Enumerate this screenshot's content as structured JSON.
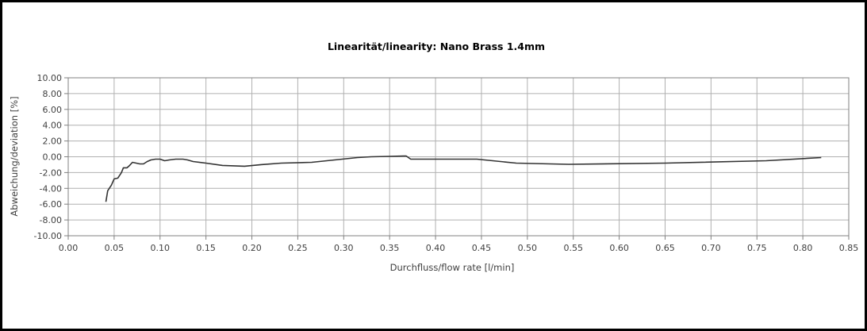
{
  "chart_data": {
    "type": "line",
    "title": "Linearität/linearity: Nano Brass 1.4mm",
    "xlabel": "Durchfluss/flow rate [l/min]",
    "ylabel": "Abweichung/deviation [%]",
    "xlim": [
      0,
      0.85
    ],
    "ylim": [
      -10,
      10
    ],
    "x_ticks": [
      "0.00",
      "0.05",
      "0.10",
      "0.15",
      "0.20",
      "0.25",
      "0.30",
      "0.35",
      "0.40",
      "0.45",
      "0.50",
      "0.55",
      "0.60",
      "0.65",
      "0.70",
      "0.75",
      "0.80",
      "0.85"
    ],
    "y_ticks": [
      "10.00",
      "8.00",
      "6.00",
      "4.00",
      "2.00",
      "0.00",
      "-2.00",
      "-4.00",
      "-6.00",
      "-8.00",
      "-10.00"
    ],
    "grid": true,
    "line_color": "#333333",
    "series": [
      {
        "points": [
          [
            0.041,
            -5.7
          ],
          [
            0.043,
            -4.3
          ],
          [
            0.047,
            -3.6
          ],
          [
            0.05,
            -2.8
          ],
          [
            0.054,
            -2.7
          ],
          [
            0.058,
            -2.0
          ],
          [
            0.06,
            -1.4
          ],
          [
            0.064,
            -1.4
          ],
          [
            0.066,
            -1.2
          ],
          [
            0.07,
            -0.7
          ],
          [
            0.074,
            -0.8
          ],
          [
            0.078,
            -0.9
          ],
          [
            0.082,
            -0.9
          ],
          [
            0.086,
            -0.6
          ],
          [
            0.09,
            -0.4
          ],
          [
            0.095,
            -0.3
          ],
          [
            0.1,
            -0.3
          ],
          [
            0.105,
            -0.5
          ],
          [
            0.11,
            -0.4
          ],
          [
            0.117,
            -0.3
          ],
          [
            0.125,
            -0.3
          ],
          [
            0.13,
            -0.4
          ],
          [
            0.136,
            -0.6
          ],
          [
            0.15,
            -0.8
          ],
          [
            0.168,
            -1.1
          ],
          [
            0.192,
            -1.2
          ],
          [
            0.21,
            -1.0
          ],
          [
            0.232,
            -0.8
          ],
          [
            0.265,
            -0.7
          ],
          [
            0.29,
            -0.4
          ],
          [
            0.315,
            -0.1
          ],
          [
            0.33,
            0.0
          ],
          [
            0.35,
            0.05
          ],
          [
            0.368,
            0.1
          ],
          [
            0.373,
            -0.3
          ],
          [
            0.405,
            -0.3
          ],
          [
            0.445,
            -0.3
          ],
          [
            0.488,
            -0.8
          ],
          [
            0.545,
            -0.95
          ],
          [
            0.65,
            -0.8
          ],
          [
            0.76,
            -0.5
          ],
          [
            0.82,
            -0.1
          ]
        ]
      }
    ]
  }
}
